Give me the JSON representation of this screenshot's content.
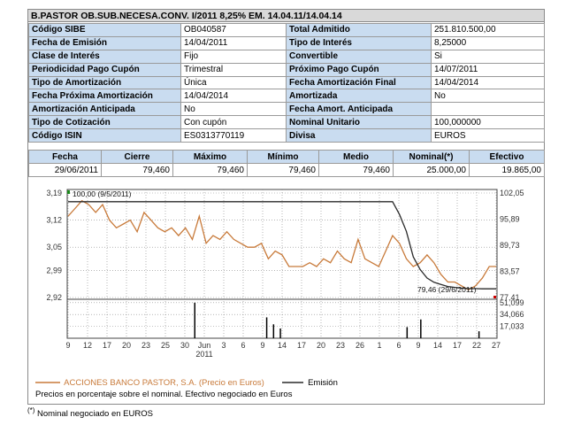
{
  "title": "B.PASTOR OB.SUB.NECESA.CONV. I/2011 8,25% EM. 14.04.11/14.04.14",
  "info_rows": [
    [
      {
        "label": "Código SIBE",
        "value": "OB040587"
      },
      {
        "label": "Total Admitido",
        "value": "251.810.500,00"
      }
    ],
    [
      {
        "label": "Fecha de Emisión",
        "value": "14/04/2011"
      },
      {
        "label": "Tipo de Interés",
        "value": "8,25000"
      }
    ],
    [
      {
        "label": "Clase de Interés",
        "value": "Fijo"
      },
      {
        "label": "Convertible",
        "value": "Si"
      }
    ],
    [
      {
        "label": "Periodicidad Pago Cupón",
        "value": "Trimestral"
      },
      {
        "label": "Próximo Pago Cupón",
        "value": "14/07/2011"
      }
    ],
    [
      {
        "label": "Tipo de Amortización",
        "value": "Única"
      },
      {
        "label": "Fecha Amortización Final",
        "value": "14/04/2014"
      }
    ],
    [
      {
        "label": "Fecha Próxima Amortización",
        "value": "14/04/2014"
      },
      {
        "label": "Amortizada",
        "value": "No"
      }
    ],
    [
      {
        "label": "Amortización Anticipada",
        "value": "No"
      },
      {
        "label": "Fecha Amort. Anticipada",
        "value": ""
      }
    ],
    [
      {
        "label": "Tipo de Cotización",
        "value": "Con cupón"
      },
      {
        "label": "Nominal Unitario",
        "value": "100,000000"
      }
    ],
    [
      {
        "label": "Código ISIN",
        "value": "ES0313770119"
      },
      {
        "label": "Divisa",
        "value": "EUROS"
      }
    ]
  ],
  "quote_headers": [
    "Fecha",
    "Cierre",
    "Máximo",
    "Mínimo",
    "Medio",
    "Nominal(*)",
    "Efectivo"
  ],
  "quote_values": [
    "29/06/2011",
    "79,460",
    "79,460",
    "79,460",
    "79,460",
    "25.000,00",
    "19.865,00"
  ],
  "chart_data": {
    "type": "line",
    "x_tick_labels": [
      "9",
      "12",
      "17",
      "20",
      "23",
      "25",
      "30",
      "Jun 2011",
      "3",
      "6",
      "9",
      "14",
      "17",
      "20",
      "23",
      "26",
      "1",
      "6",
      "9",
      "14",
      "17",
      "22",
      "27"
    ],
    "left_axis_ticks": [
      3.19,
      3.12,
      3.05,
      2.99,
      2.92
    ],
    "right_axis_ticks": [
      102.05,
      95.89,
      89.73,
      83.57,
      77.41
    ],
    "volume_axis_ticks": [
      51.099,
      34.066,
      17.033
    ],
    "annotations": [
      "100,00 (9/5/2011)",
      "79,46 (29/6/2011)"
    ],
    "series": [
      {
        "name": "ACCIONES BANCO PASTOR, S.A. (Precio en Euros)",
        "axis": "left",
        "color": "#c87a3a",
        "values": [
          3.13,
          3.15,
          3.17,
          3.16,
          3.14,
          3.16,
          3.12,
          3.1,
          3.11,
          3.12,
          3.09,
          3.14,
          3.12,
          3.1,
          3.09,
          3.1,
          3.08,
          3.1,
          3.07,
          3.13,
          3.06,
          3.08,
          3.07,
          3.09,
          3.07,
          3.06,
          3.05,
          3.05,
          3.06,
          3.02,
          3.04,
          3.03,
          3.0,
          3.0,
          3.0,
          3.01,
          3.0,
          3.02,
          3.01,
          3.04,
          3.02,
          3.01,
          3.07,
          3.02,
          3.01,
          3.0,
          3.04,
          3.08,
          3.06,
          3.02,
          3.0,
          3.01,
          3.03,
          3.01,
          2.98,
          2.96,
          2.96,
          2.95,
          2.94,
          2.95,
          2.97,
          3.0,
          3.0
        ]
      },
      {
        "name": "Emisión",
        "axis": "right",
        "color": "#2a2a2a",
        "values": [
          100,
          100,
          100,
          100,
          100,
          100,
          100,
          100,
          100,
          100,
          100,
          100,
          100,
          100,
          100,
          100,
          100,
          100,
          100,
          100,
          100,
          100,
          100,
          100,
          100,
          100,
          100,
          100,
          100,
          100,
          100,
          100,
          100,
          100,
          100,
          100,
          100,
          100,
          100,
          100,
          100,
          100,
          100,
          100,
          100,
          100,
          100,
          100,
          97,
          93,
          87,
          84,
          82,
          81,
          80.5,
          80,
          79.8,
          79.6,
          79.5,
          79.5,
          79.46,
          79.46,
          79.46
        ]
      }
    ],
    "volume_bars": [
      {
        "index": 37,
        "value": 51.099
      },
      {
        "index": 58,
        "value": 30.0
      },
      {
        "index": 60,
        "value": 20.0
      },
      {
        "index": 62,
        "value": 14.0
      },
      {
        "index": 99,
        "value": 16.0
      },
      {
        "index": 103,
        "value": 27.0
      },
      {
        "index": 120,
        "value": 10.0
      }
    ]
  },
  "legend": {
    "series1": "ACCIONES BANCO PASTOR, S.A. (Precio en Euros)",
    "series2": "Emisión",
    "note": "Precios en porcentaje sobre el nominal. Efectivo negociado en Euros"
  },
  "footnote": {
    "mark": "(*)",
    "text": "Nominal negociado en EUROS"
  },
  "colors": {
    "label_bg": "#c9dcf0",
    "price_line": "#c87a3a",
    "emission_line": "#2a2a2a"
  }
}
